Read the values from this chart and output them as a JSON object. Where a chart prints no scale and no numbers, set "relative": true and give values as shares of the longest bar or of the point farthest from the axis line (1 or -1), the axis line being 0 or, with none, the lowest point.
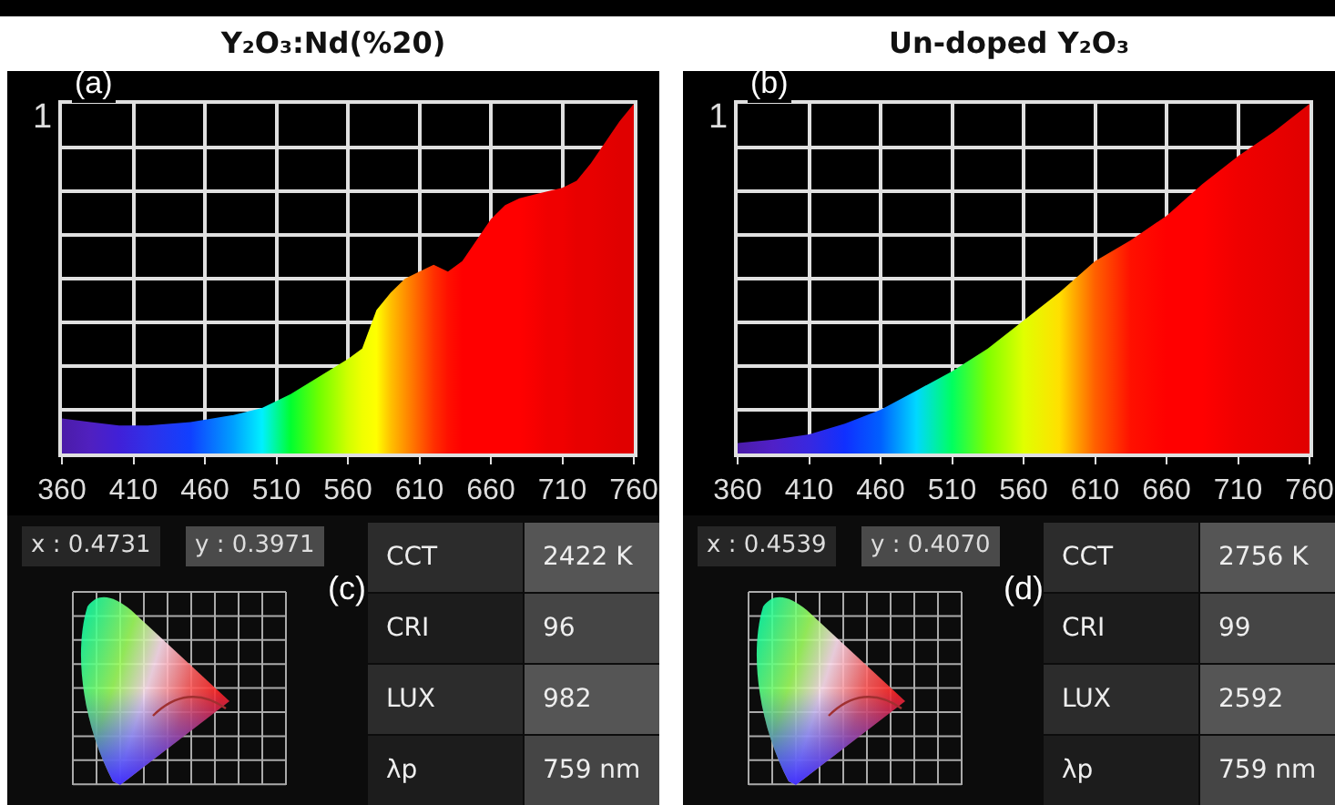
{
  "chart_data": [
    {
      "type": "area",
      "title": "Y₂O₃:Nd(%20)",
      "relative": true,
      "grid": true,
      "xlim": [
        360,
        760
      ],
      "xticks": [
        360,
        410,
        460,
        510,
        560,
        610,
        660,
        710,
        760
      ],
      "annotations": [
        "(a)",
        "1"
      ],
      "series": [
        {
          "x": [
            360,
            380,
            400,
            420,
            450,
            480,
            500,
            520,
            540,
            560,
            570,
            580,
            590,
            600,
            610,
            620,
            630,
            640,
            650,
            660,
            670,
            680,
            690,
            700,
            710,
            720,
            730,
            740,
            750,
            760
          ],
          "values": [
            0.1,
            0.09,
            0.08,
            0.08,
            0.09,
            0.11,
            0.13,
            0.17,
            0.22,
            0.27,
            0.3,
            0.41,
            0.46,
            0.5,
            0.52,
            0.54,
            0.52,
            0.55,
            0.61,
            0.67,
            0.71,
            0.73,
            0.74,
            0.75,
            0.76,
            0.78,
            0.83,
            0.89,
            0.95,
            1.0
          ],
          "colors": [
            "#4b1ca8",
            "#5020c0",
            "#4020d8",
            "#3030e8",
            "#1040ff",
            "#00a0ff",
            "#00f0ff",
            "#00ff30",
            "#70ff00",
            "#d0ff00",
            "#f0ff00",
            "#ffff00",
            "#ffc000",
            "#ff9000",
            "#ff6000",
            "#ff3000",
            "#ff1000",
            "#ff0000",
            "#ff0000",
            "#ff0000",
            "#ff0000",
            "#ff0000",
            "#f80000",
            "#f00000",
            "#f00000",
            "#e80000",
            "#e80000",
            "#e40000",
            "#e00000",
            "#e00000"
          ]
        }
      ]
    },
    {
      "type": "area",
      "title": "Un-doped Y₂O₃",
      "relative": true,
      "grid": true,
      "xlim": [
        360,
        760
      ],
      "xticks": [
        360,
        410,
        460,
        510,
        560,
        610,
        660,
        710,
        760
      ],
      "annotations": [
        "(b)",
        "1"
      ],
      "series": [
        {
          "x": [
            360,
            385,
            410,
            435,
            460,
            485,
            510,
            535,
            560,
            585,
            610,
            635,
            660,
            685,
            710,
            735,
            760
          ],
          "values": [
            0.03,
            0.04,
            0.055,
            0.085,
            0.125,
            0.18,
            0.235,
            0.3,
            0.38,
            0.46,
            0.55,
            0.61,
            0.68,
            0.77,
            0.85,
            0.92,
            1.0
          ],
          "colors": [
            "#4b1ca8",
            "#5020c8",
            "#3828e0",
            "#1030ff",
            "#0060ff",
            "#00d8ff",
            "#00ff60",
            "#80ff00",
            "#e0ff00",
            "#ffe000",
            "#ff6000",
            "#ff1000",
            "#ff0000",
            "#ff0000",
            "#f00000",
            "#e80000",
            "#e00000"
          ]
        }
      ]
    },
    {
      "type": "other",
      "annotations": [
        "x : 0.4731",
        "y : 0.3971",
        "(c)",
        "CCT",
        "2422 K",
        "CRI",
        "96",
        "LUX",
        "982",
        "λp",
        "759 nm"
      ]
    },
    {
      "type": "other",
      "annotations": [
        "x : 0.4539",
        "y : 0.4070",
        "(d)",
        "CCT",
        "2756 K",
        "CRI",
        "99",
        "LUX",
        "2592",
        "λp",
        "759 nm"
      ]
    }
  ]
}
